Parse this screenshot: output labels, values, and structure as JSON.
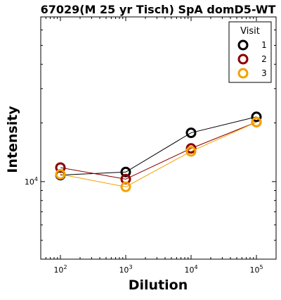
{
  "chart_data": {
    "type": "line",
    "title": "67029(M 25 yr Tisch) SpA domD5-WT",
    "xlabel": "Dilution",
    "ylabel": "Intensity",
    "x_scale": "log",
    "y_scale": "log",
    "xlim": [
      50,
      200000
    ],
    "ylim": [
      4000,
      70000
    ],
    "x": [
      100,
      1000,
      10000,
      100000
    ],
    "x_tick_labels": [
      {
        "value": 100,
        "base": "10",
        "exp": "2"
      },
      {
        "value": 1000,
        "base": "10",
        "exp": "3"
      },
      {
        "value": 10000,
        "base": "10",
        "exp": "4"
      },
      {
        "value": 100000,
        "base": "10",
        "exp": "5"
      }
    ],
    "y_tick_labels": [
      {
        "value": 10000,
        "base": "10",
        "exp": "4"
      }
    ],
    "legend": {
      "title": "Visit",
      "position": "top-right"
    },
    "series": [
      {
        "name": "1",
        "color": "#000000",
        "values": [
          10800,
          11200,
          17800,
          21500
        ]
      },
      {
        "name": "2",
        "color": "#8b0000",
        "values": [
          11800,
          10300,
          14800,
          20200
        ]
      },
      {
        "name": "3",
        "color": "#f5a000",
        "values": [
          10900,
          9400,
          14300,
          20200
        ]
      }
    ]
  }
}
